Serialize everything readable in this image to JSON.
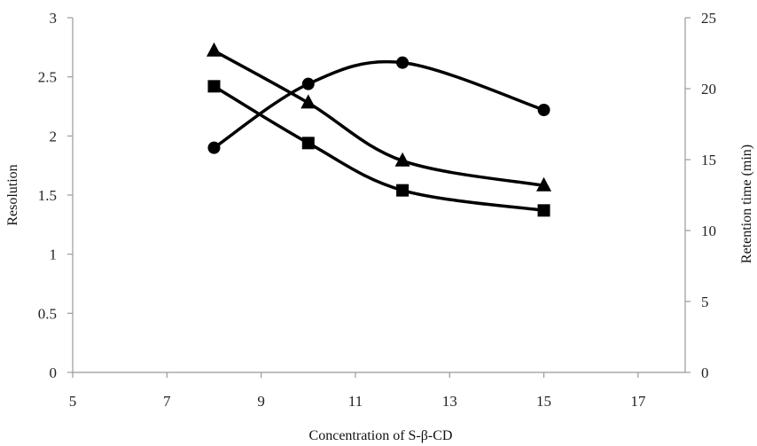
{
  "chart_data": {
    "type": "line",
    "xlabel": "Concentration of S-β-CD",
    "ylabel_left": "Resolution",
    "ylabel_right": "Retention time (min)",
    "xlim": [
      5,
      18
    ],
    "xticks": [
      "5",
      "7",
      "9",
      "11",
      "13",
      "15",
      "17"
    ],
    "ylim_left": [
      0,
      3
    ],
    "yticks_left": [
      "0",
      "0.5",
      "1",
      "1.5",
      "2",
      "2.5",
      "3"
    ],
    "ylim_right": [
      0,
      25
    ],
    "yticks_right": [
      "0",
      "5",
      "10",
      "15",
      "20",
      "25"
    ],
    "series": [
      {
        "marker": "circle",
        "axis": "left",
        "x": [
          8,
          10,
          12,
          15
        ],
        "values": [
          1.9,
          2.44,
          2.62,
          2.22
        ]
      },
      {
        "marker": "triangle",
        "axis": "left",
        "x": [
          8,
          10,
          12,
          15
        ],
        "values": [
          2.72,
          2.28,
          1.79,
          1.58
        ]
      },
      {
        "marker": "square",
        "axis": "left",
        "x": [
          8,
          10,
          12,
          15
        ],
        "values": [
          2.42,
          1.94,
          1.54,
          1.37
        ]
      }
    ],
    "grid": false,
    "legend": "none"
  }
}
